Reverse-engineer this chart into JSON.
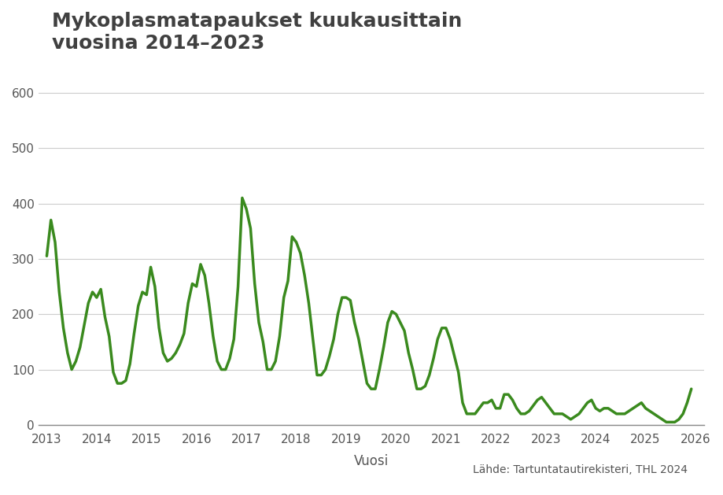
{
  "title": "Mykoplasmatapaukset kuukausittain\nvuosina 2014–2023",
  "xlabel": "Vuosi",
  "ylabel": "",
  "source_text": "Lähde: Tartuntatautirekisteri, THL 2024",
  "line_color": "#3a8a1e",
  "line_width": 2.5,
  "background_color": "#ffffff",
  "grid_color": "#cccccc",
  "title_color": "#404040",
  "tick_color": "#555555",
  "ylim": [
    0,
    650
  ],
  "yticks": [
    0,
    100,
    200,
    300,
    400,
    500,
    600
  ],
  "values": [
    305,
    370,
    330,
    240,
    175,
    130,
    100,
    115,
    140,
    180,
    220,
    240,
    230,
    245,
    195,
    160,
    95,
    75,
    75,
    80,
    110,
    165,
    215,
    240,
    235,
    285,
    250,
    175,
    130,
    115,
    120,
    130,
    145,
    165,
    220,
    255,
    250,
    290,
    270,
    220,
    160,
    115,
    100,
    100,
    120,
    155,
    250,
    410,
    390,
    355,
    255,
    185,
    150,
    100,
    100,
    115,
    160,
    230,
    260,
    340,
    330,
    310,
    270,
    220,
    155,
    90,
    90,
    100,
    125,
    155,
    200,
    230,
    230,
    225,
    185,
    155,
    115,
    75,
    65,
    65,
    100,
    140,
    185,
    205,
    200,
    185,
    170,
    130,
    100,
    65,
    65,
    70,
    90,
    120,
    155,
    175,
    175,
    155,
    125,
    95,
    40,
    20,
    20,
    20,
    30,
    40,
    40,
    45,
    30,
    30,
    55,
    55,
    45,
    30,
    20,
    20,
    25,
    35,
    45,
    50,
    40,
    30,
    20,
    20,
    20,
    15,
    10,
    15,
    20,
    30,
    40,
    45,
    30,
    25,
    30,
    30,
    25,
    20,
    20,
    20,
    25,
    30,
    35,
    40,
    30,
    25,
    20,
    15,
    10,
    5,
    5,
    5,
    10,
    20,
    40,
    65
  ],
  "x_tick_positions": [
    0,
    12,
    24,
    36,
    48,
    60,
    72,
    84,
    96,
    108,
    120
  ],
  "x_tick_labels": [
    "2013",
    "2014",
    "2015",
    "2016",
    "2017",
    "2018",
    "2019",
    "2020",
    "2021",
    "2022",
    "2023"
  ]
}
